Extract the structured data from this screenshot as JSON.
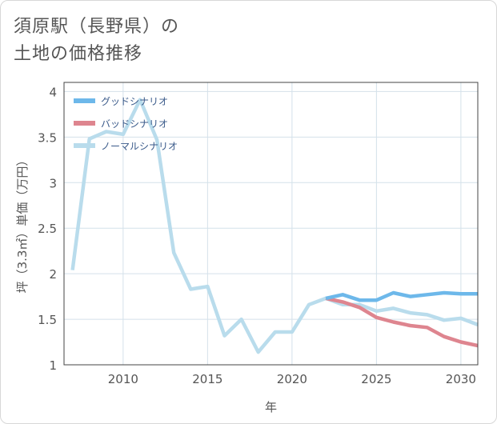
{
  "title": {
    "line1": "須原駅（長野県）の",
    "line2": "土地の価格推移"
  },
  "colors": {
    "good": "#6db8ea",
    "bad": "#de858f",
    "normal": "#b9dcec",
    "grid": "#d4e1ea",
    "plot_border": "#444444"
  },
  "chart_data": {
    "type": "line",
    "title": "須原駅（長野県）の土地の価格推移",
    "xlabel": "年",
    "ylabel": "坪（3.3㎡）単価（万円）",
    "xlim": [
      2006.5,
      2031
    ],
    "ylim": [
      1,
      4.1
    ],
    "x_ticks": [
      2010,
      2015,
      2020,
      2025,
      2030
    ],
    "y_ticks": [
      1,
      1.5,
      2,
      2.5,
      3,
      3.5,
      4
    ],
    "y_tick_labels": [
      "1",
      "1.5",
      "2",
      "2.5",
      "3",
      "3.5",
      "4"
    ],
    "legend_position": "top-left",
    "series": [
      {
        "name": "グッドシナリオ",
        "color_key": "good",
        "x": [
          2022,
          2023,
          2024,
          2025,
          2026,
          2027,
          2028,
          2029,
          2030,
          2031
        ],
        "values": [
          1.73,
          1.77,
          1.71,
          1.71,
          1.79,
          1.75,
          1.77,
          1.79,
          1.78,
          1.78
        ]
      },
      {
        "name": "バッドシナリオ",
        "color_key": "bad",
        "x": [
          2022,
          2023,
          2024,
          2025,
          2026,
          2027,
          2028,
          2029,
          2030,
          2031
        ],
        "values": [
          1.73,
          1.69,
          1.63,
          1.52,
          1.47,
          1.43,
          1.41,
          1.31,
          1.25,
          1.21
        ]
      },
      {
        "name": "ノーマルシナリオ",
        "color_key": "normal",
        "x": [
          2007,
          2008,
          2009,
          2010,
          2011,
          2012,
          2013,
          2014,
          2015,
          2016,
          2017,
          2018,
          2019,
          2020,
          2021,
          2022,
          2023,
          2024,
          2025,
          2026,
          2027,
          2028,
          2029,
          2030,
          2031
        ],
        "values": [
          2.04,
          3.48,
          3.56,
          3.53,
          3.91,
          3.47,
          2.23,
          1.83,
          1.86,
          1.32,
          1.5,
          1.14,
          1.36,
          1.36,
          1.66,
          1.73,
          1.66,
          1.66,
          1.59,
          1.62,
          1.57,
          1.55,
          1.49,
          1.51,
          1.44
        ]
      }
    ]
  }
}
